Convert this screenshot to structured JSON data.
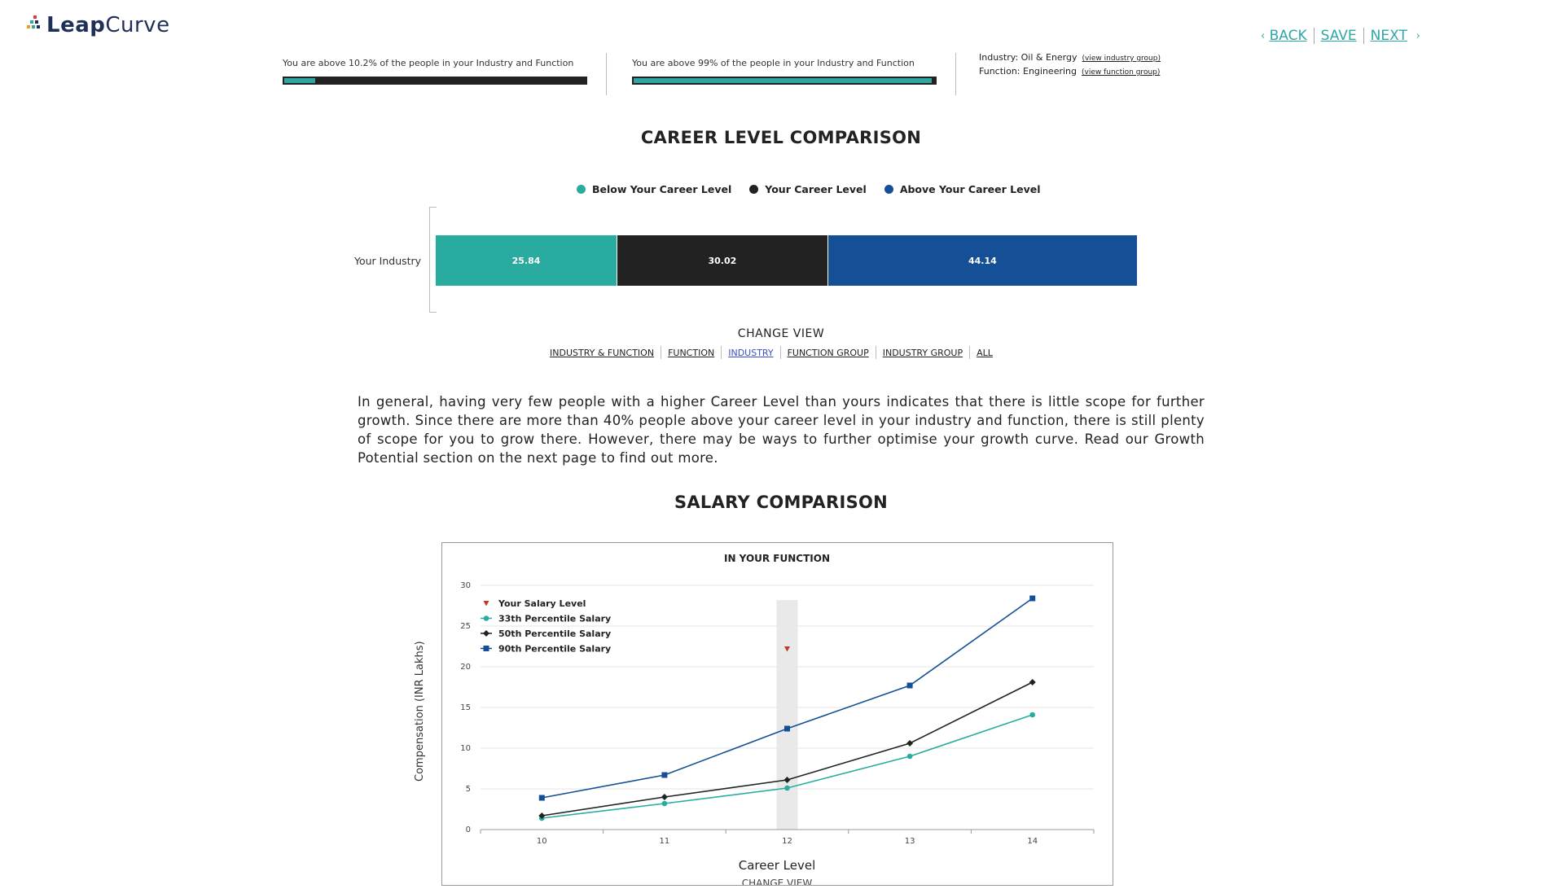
{
  "brand": {
    "logo_text_bold": "Leap",
    "logo_text_light": "Curve"
  },
  "nav": {
    "back_label": "BACK",
    "save_label": "SAVE",
    "next_label": "NEXT"
  },
  "progress": [
    {
      "text": "You are above 10.2% of the people in your Industry and Function",
      "percent": 10.2
    },
    {
      "text": "You are above 99% of the people in your Industry and Function",
      "percent": 99
    }
  ],
  "meta": {
    "industry_label": "Industry: Oil & Energy",
    "industry_link": "(view industry group)",
    "function_label": "Function: Engineering",
    "function_link": "(view function group)"
  },
  "career": {
    "title": "CAREER LEVEL COMPARISON",
    "legend": [
      {
        "label": "Below Your Career Level",
        "color": "#29aba0"
      },
      {
        "label": "Your Career Level",
        "color": "#222222"
      },
      {
        "label": "Above Your Career Level",
        "color": "#154f96"
      }
    ],
    "row_label": "Your Industry",
    "segments": [
      {
        "label": "25.84",
        "value": 25.84,
        "color": "#29aba0"
      },
      {
        "label": "30.02",
        "value": 30.02,
        "color": "#222222"
      },
      {
        "label": "44.14",
        "value": 44.14,
        "color": "#154f96"
      }
    ],
    "change_view": "CHANGE VIEW",
    "views": [
      "INDUSTRY & FUNCTION",
      "FUNCTION",
      "INDUSTRY",
      "FUNCTION GROUP",
      "INDUSTRY GROUP",
      "ALL"
    ],
    "active_view": "INDUSTRY"
  },
  "paragraph": "In general, having very few people with a higher Career Level than yours indicates that there is little scope for further growth. Since there are more than 40% people above your career level in your industry and function, there is still plenty of scope for you to grow there. However, there may be ways to further optimise your growth curve. Read our Growth Potential section on the next page to find out more.",
  "salary": {
    "title": "SALARY COMPARISON"
  },
  "chart_data": {
    "type": "line",
    "title": "IN YOUR FUNCTION",
    "xlabel": "Career Level",
    "ylabel": "Compensation (INR Lakhs)",
    "x": [
      10,
      11,
      12,
      13,
      14
    ],
    "ylim": [
      0,
      30
    ],
    "yticks": [
      0,
      5,
      10,
      15,
      20,
      25,
      30
    ],
    "grid": true,
    "legend_position": "top-left",
    "highlight_x": 12,
    "your_salary": {
      "name": "Your Salary Level",
      "x": 12,
      "y": 22.2,
      "color": "#c0392b"
    },
    "series": [
      {
        "name": "33th Percentile Salary",
        "color": "#29aba0",
        "marker": "circle",
        "values": [
          1.4,
          3.2,
          5.1,
          9.0,
          14.1
        ]
      },
      {
        "name": "50th Percentile Salary",
        "color": "#222222",
        "marker": "diamond",
        "values": [
          1.7,
          4.0,
          6.1,
          10.6,
          18.1
        ]
      },
      {
        "name": "90th Percentile Salary",
        "color": "#154f96",
        "marker": "square",
        "values": [
          3.9,
          6.7,
          12.4,
          17.7,
          28.4
        ]
      }
    ],
    "footer_partial": "CHANGE VIEW"
  }
}
